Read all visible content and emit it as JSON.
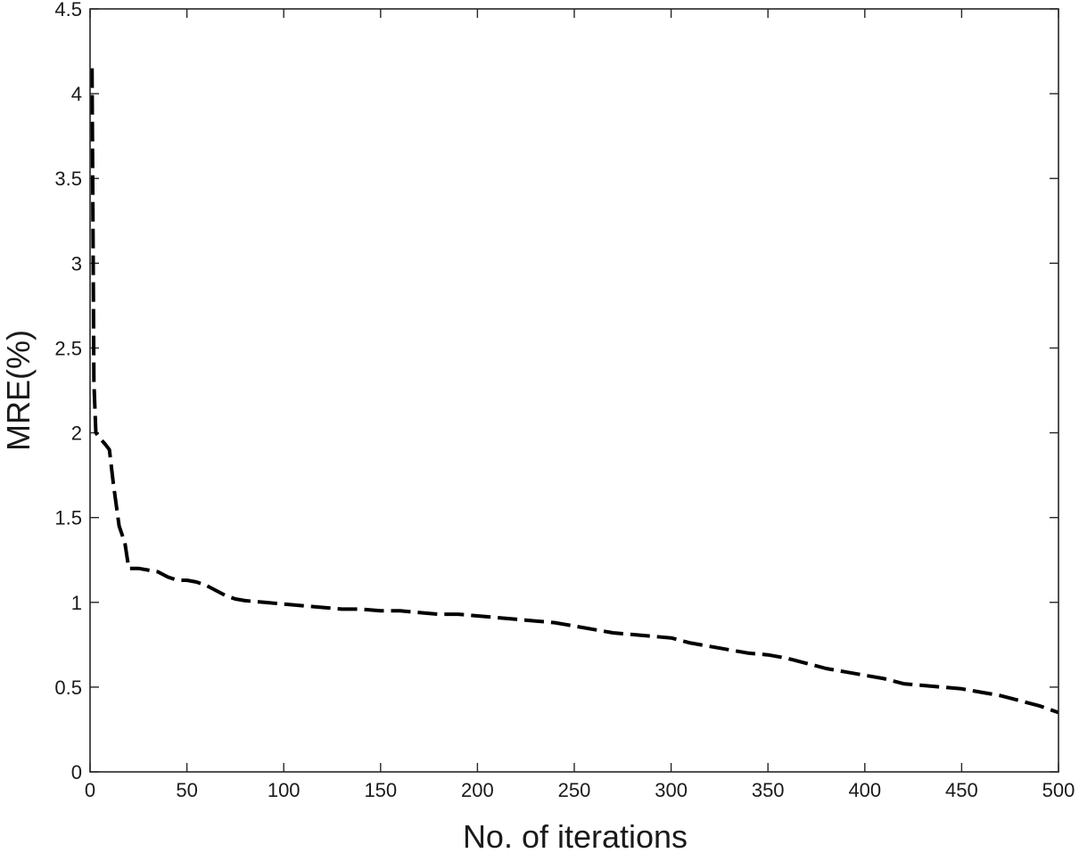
{
  "chart_data": {
    "type": "line",
    "title": "",
    "xlabel": "No. of iterations",
    "ylabel": "MRE(%)",
    "xlim": [
      0,
      500
    ],
    "ylim": [
      0,
      4.5
    ],
    "xticks": [
      0,
      50,
      100,
      150,
      200,
      250,
      300,
      350,
      400,
      450,
      500
    ],
    "yticks": [
      0,
      0.5,
      1,
      1.5,
      2,
      2.5,
      3,
      3.5,
      4,
      4.5
    ],
    "xtick_labels": [
      "0",
      "50",
      "100",
      "150",
      "200",
      "250",
      "300",
      "350",
      "400",
      "450",
      "500"
    ],
    "ytick_labels": [
      "0",
      "0.5",
      "1",
      "1.5",
      "2",
      "2.5",
      "3",
      "3.5",
      "4",
      "4.5"
    ],
    "grid": false,
    "legend": "none",
    "series": [
      {
        "color": "#000000",
        "line_style": "dashed",
        "x": [
          1,
          1.5,
          2,
          3,
          5,
          8,
          10,
          12,
          15,
          18,
          20,
          25,
          30,
          35,
          40,
          45,
          50,
          55,
          60,
          65,
          70,
          75,
          80,
          90,
          100,
          110,
          120,
          130,
          140,
          150,
          160,
          170,
          180,
          190,
          200,
          210,
          220,
          230,
          240,
          250,
          260,
          270,
          280,
          290,
          300,
          310,
          320,
          330,
          340,
          350,
          360,
          370,
          380,
          390,
          400,
          410,
          420,
          430,
          440,
          450,
          460,
          470,
          480,
          490,
          500
        ],
        "y": [
          4.15,
          3.2,
          2.3,
          2.0,
          1.97,
          1.93,
          1.9,
          1.7,
          1.45,
          1.35,
          1.2,
          1.2,
          1.19,
          1.18,
          1.15,
          1.13,
          1.13,
          1.12,
          1.1,
          1.07,
          1.04,
          1.02,
          1.01,
          1.0,
          0.99,
          0.98,
          0.97,
          0.96,
          0.96,
          0.95,
          0.95,
          0.94,
          0.93,
          0.93,
          0.92,
          0.91,
          0.9,
          0.89,
          0.88,
          0.86,
          0.84,
          0.82,
          0.81,
          0.8,
          0.79,
          0.76,
          0.74,
          0.72,
          0.7,
          0.69,
          0.67,
          0.64,
          0.61,
          0.59,
          0.57,
          0.55,
          0.52,
          0.51,
          0.5,
          0.49,
          0.47,
          0.45,
          0.42,
          0.39,
          0.35
        ]
      }
    ]
  }
}
